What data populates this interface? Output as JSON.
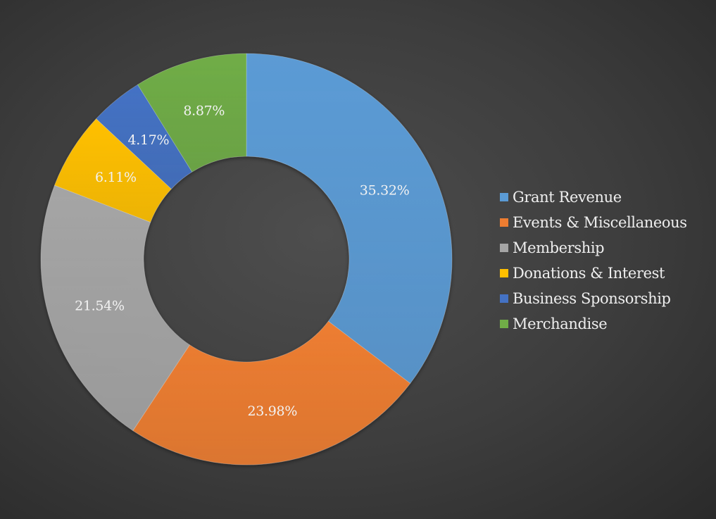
{
  "chart_data": {
    "type": "pie",
    "donut": true,
    "title": "",
    "legend_position": "right",
    "slices": [
      {
        "label": "Grant Revenue",
        "value": 35.32,
        "display": "35.32%",
        "color": "#5b9bd5"
      },
      {
        "label": "Events & Miscellaneous",
        "value": 23.98,
        "display": "23.98%",
        "color": "#ed7d31"
      },
      {
        "label": "Membership",
        "value": 21.54,
        "display": "21.54%",
        "color": "#a5a5a5"
      },
      {
        "label": "Donations & Interest",
        "value": 6.11,
        "display": "6.11%",
        "color": "#ffc000"
      },
      {
        "label": "Business Sponsorship",
        "value": 4.17,
        "display": "4.17%",
        "color": "#4472c4"
      },
      {
        "label": "Merchandise",
        "value": 8.87,
        "display": "8.87%",
        "color": "#70ad47"
      }
    ]
  }
}
